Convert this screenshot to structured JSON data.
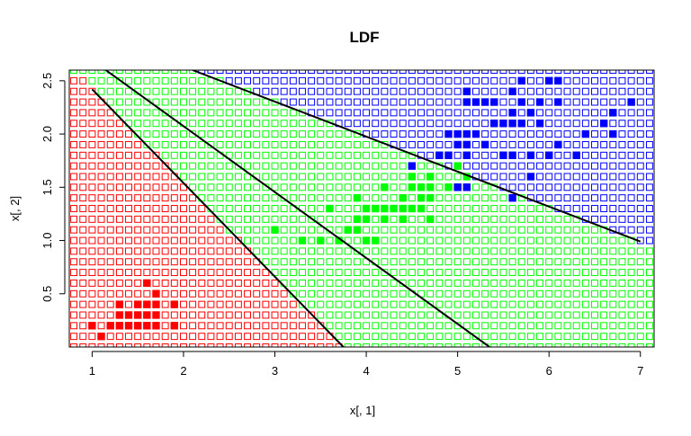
{
  "chart_data": {
    "type": "scatter",
    "title": "LDF",
    "xlabel": "x[, 1]",
    "ylabel": "x[, 2]",
    "xlim": [
      0.75,
      7.15
    ],
    "ylim": [
      0.0,
      2.6
    ],
    "x_ticks": [
      1,
      2,
      3,
      4,
      5,
      6,
      7
    ],
    "x_tick_labels": [
      "1",
      "2",
      "3",
      "4",
      "5",
      "6",
      "7"
    ],
    "y_ticks": [
      0.5,
      1.0,
      1.5,
      2.0,
      2.5
    ],
    "y_tick_labels": [
      "0.5",
      "1.0",
      "1.5",
      "2.0",
      "2.5"
    ],
    "grid_step_x": 0.1,
    "grid_step_y": 0.1,
    "region_colors": {
      "red": "#ff0000",
      "green": "#00ff00",
      "blue": "#0000ff"
    },
    "boundaries": [
      {
        "name": "red-green",
        "points": [
          [
            1.0,
            2.42
          ],
          [
            3.75,
            0.0
          ]
        ]
      },
      {
        "name": "red-blue",
        "points": [
          [
            1.15,
            2.6
          ],
          [
            5.35,
            0.0
          ]
        ]
      },
      {
        "name": "green-blue",
        "points": [
          [
            2.1,
            2.6
          ],
          [
            7.0,
            0.99
          ]
        ]
      }
    ],
    "series": [
      {
        "color": "#ff0000",
        "points": [
          [
            1.0,
            0.2
          ],
          [
            1.1,
            0.1
          ],
          [
            1.2,
            0.2
          ],
          [
            1.3,
            0.2
          ],
          [
            1.3,
            0.3
          ],
          [
            1.3,
            0.4
          ],
          [
            1.4,
            0.2
          ],
          [
            1.4,
            0.3
          ],
          [
            1.5,
            0.2
          ],
          [
            1.5,
            0.4
          ],
          [
            1.5,
            0.3
          ],
          [
            1.6,
            0.2
          ],
          [
            1.6,
            0.4
          ],
          [
            1.6,
            0.6
          ],
          [
            1.6,
            0.3
          ],
          [
            1.7,
            0.2
          ],
          [
            1.7,
            0.3
          ],
          [
            1.7,
            0.4
          ],
          [
            1.7,
            0.5
          ],
          [
            1.9,
            0.2
          ],
          [
            1.9,
            0.4
          ]
        ]
      },
      {
        "color": "#00ff00",
        "points": [
          [
            3.0,
            1.1
          ],
          [
            3.3,
            1.0
          ],
          [
            3.5,
            1.0
          ],
          [
            3.6,
            1.3
          ],
          [
            3.7,
            1.0
          ],
          [
            3.8,
            1.1
          ],
          [
            3.9,
            1.1
          ],
          [
            3.9,
            1.4
          ],
          [
            3.9,
            1.2
          ],
          [
            4.0,
            1.0
          ],
          [
            4.0,
            1.2
          ],
          [
            4.0,
            1.3
          ],
          [
            4.1,
            1.0
          ],
          [
            4.1,
            1.3
          ],
          [
            4.2,
            1.2
          ],
          [
            4.2,
            1.3
          ],
          [
            4.2,
            1.5
          ],
          [
            4.3,
            1.3
          ],
          [
            4.4,
            1.2
          ],
          [
            4.4,
            1.3
          ],
          [
            4.4,
            1.4
          ],
          [
            4.5,
            1.3
          ],
          [
            4.5,
            1.5
          ],
          [
            4.5,
            1.6
          ],
          [
            4.6,
            1.3
          ],
          [
            4.6,
            1.4
          ],
          [
            4.6,
            1.5
          ],
          [
            4.7,
            1.2
          ],
          [
            4.7,
            1.4
          ],
          [
            4.7,
            1.5
          ],
          [
            4.7,
            1.6
          ],
          [
            4.8,
            1.8
          ],
          [
            4.9,
            1.5
          ],
          [
            5.0,
            1.7
          ],
          [
            5.1,
            1.6
          ],
          [
            5.0,
            1.5
          ]
        ]
      },
      {
        "color": "#0000ff",
        "points": [
          [
            4.5,
            1.7
          ],
          [
            4.8,
            1.8
          ],
          [
            4.9,
            1.8
          ],
          [
            4.9,
            2.0
          ],
          [
            5.0,
            1.5
          ],
          [
            5.0,
            1.9
          ],
          [
            5.0,
            2.0
          ],
          [
            5.1,
            1.5
          ],
          [
            5.1,
            1.8
          ],
          [
            5.1,
            1.9
          ],
          [
            5.1,
            2.0
          ],
          [
            5.1,
            2.3
          ],
          [
            5.1,
            2.4
          ],
          [
            5.2,
            2.0
          ],
          [
            5.2,
            2.3
          ],
          [
            5.3,
            1.9
          ],
          [
            5.3,
            2.3
          ],
          [
            5.4,
            2.1
          ],
          [
            5.4,
            2.3
          ],
          [
            5.5,
            1.8
          ],
          [
            5.5,
            2.1
          ],
          [
            5.6,
            1.4
          ],
          [
            5.6,
            1.8
          ],
          [
            5.6,
            2.1
          ],
          [
            5.6,
            2.2
          ],
          [
            5.6,
            2.4
          ],
          [
            5.7,
            2.1
          ],
          [
            5.7,
            2.3
          ],
          [
            5.7,
            2.5
          ],
          [
            5.8,
            1.6
          ],
          [
            5.8,
            1.8
          ],
          [
            5.8,
            2.2
          ],
          [
            5.9,
            2.1
          ],
          [
            5.9,
            2.3
          ],
          [
            6.0,
            1.8
          ],
          [
            6.0,
            2.5
          ],
          [
            6.1,
            1.9
          ],
          [
            6.1,
            2.3
          ],
          [
            6.1,
            2.5
          ],
          [
            6.3,
            1.8
          ],
          [
            6.4,
            2.0
          ],
          [
            6.6,
            2.1
          ],
          [
            6.7,
            2.0
          ],
          [
            6.7,
            2.2
          ],
          [
            6.9,
            2.3
          ]
        ]
      }
    ]
  }
}
